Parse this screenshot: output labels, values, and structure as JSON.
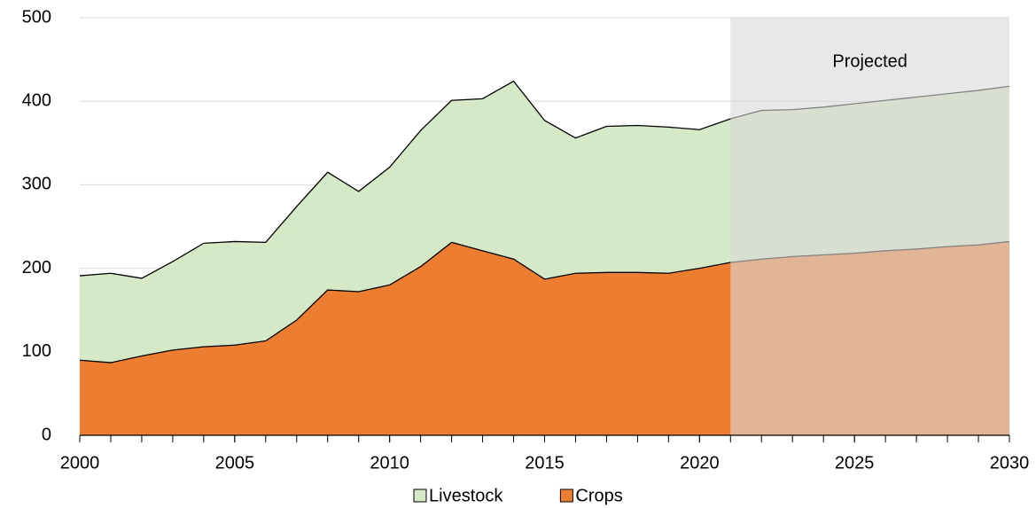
{
  "chart_data": {
    "type": "stacked_area",
    "x": [
      2000,
      2001,
      2002,
      2003,
      2004,
      2005,
      2006,
      2007,
      2008,
      2009,
      2010,
      2011,
      2012,
      2013,
      2014,
      2015,
      2016,
      2017,
      2018,
      2019,
      2020,
      2021,
      2022,
      2023,
      2024,
      2025,
      2026,
      2027,
      2028,
      2029,
      2030
    ],
    "series": [
      {
        "name": "Livestock",
        "color": "#d6e9c6",
        "values": [
          101,
          107,
          93,
          106,
          124,
          124,
          118,
          136,
          141,
          120,
          141,
          163,
          170,
          182,
          213,
          190,
          162,
          175,
          176,
          175,
          166,
          172,
          178,
          176,
          177,
          179,
          180,
          182,
          183,
          185,
          186
        ]
      },
      {
        "name": "Crops",
        "color": "#ed7d31",
        "values": [
          90,
          87,
          95,
          102,
          106,
          108,
          113,
          138,
          174,
          172,
          180,
          202,
          231,
          221,
          211,
          187,
          194,
          195,
          195,
          194,
          200,
          207,
          211,
          214,
          216,
          218,
          221,
          223,
          226,
          228,
          232
        ]
      }
    ],
    "xlim": [
      2000,
      2030
    ],
    "xticks": [
      2000,
      2005,
      2010,
      2015,
      2020,
      2025,
      2030
    ],
    "ylim": [
      0,
      500
    ],
    "yticks": [
      0,
      100,
      200,
      300,
      400,
      500
    ],
    "grid": true,
    "projection": {
      "label": "Projected",
      "start": 2021,
      "end": 2030,
      "color": "#d9d9d9"
    },
    "legend": "bottom"
  }
}
